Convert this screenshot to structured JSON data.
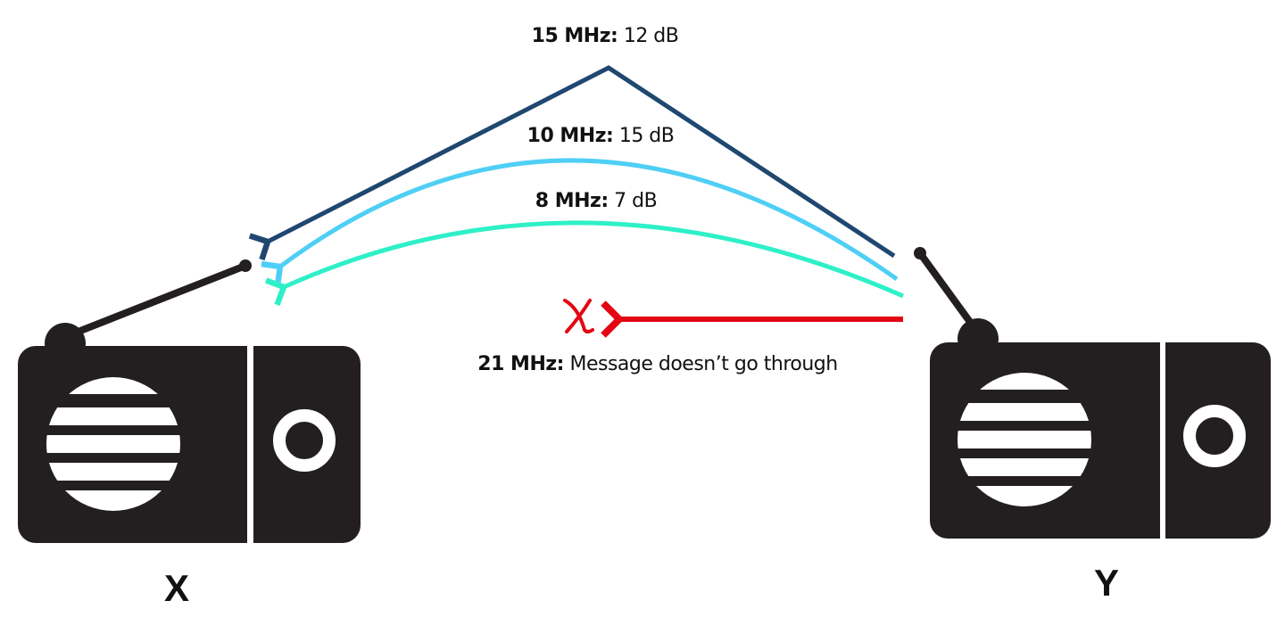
{
  "signals": [
    {
      "frequency": "15 MHz:",
      "result": "12 dB",
      "color": "#1f4770",
      "path": "sky-wave-peaked"
    },
    {
      "frequency": "10 MHz:",
      "result": "15 dB",
      "color": "#4fcff5",
      "path": "arc"
    },
    {
      "frequency": "8 MHz:",
      "result": "7 dB",
      "color": "#2ef0c8",
      "path": "arc"
    },
    {
      "frequency": "21 MHz:",
      "result": "Message doesn’t go through",
      "color": "#e30613",
      "path": "blocked"
    }
  ],
  "blocked_marker": "x-mark-icon",
  "radios": {
    "left": "X",
    "right": "Y"
  },
  "radio_color": "#231f20"
}
